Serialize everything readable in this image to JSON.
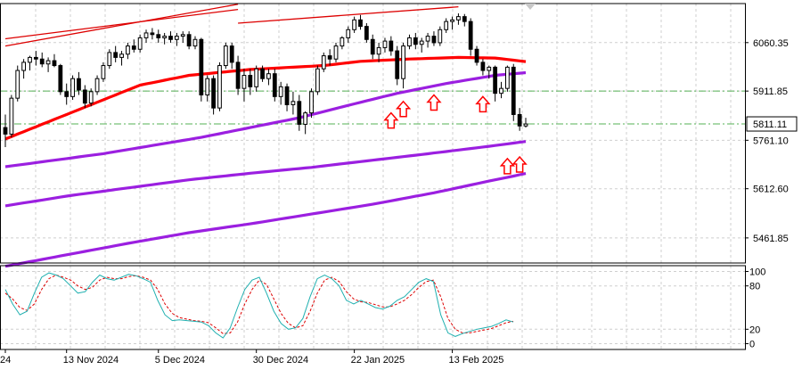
{
  "chart_data": {
    "type": "candlestick",
    "price_panel": {
      "y_ticks": [
        "6060.35",
        "5911.85",
        "5761.10",
        "5612.60",
        "5461.85"
      ],
      "y_tick_values": [
        6060.35,
        5911.85,
        5761.1,
        5612.6,
        5461.85
      ],
      "current_price_label": "5811.11",
      "current_price": 5811.11,
      "y_range": [
        5385,
        6180
      ],
      "horizontal_levels": [
        5911.85,
        5811.11
      ],
      "candles": [
        [
          5800,
          5840,
          5740,
          5780
        ],
        [
          5780,
          5900,
          5770,
          5890
        ],
        [
          5890,
          5990,
          5880,
          5975
        ],
        [
          5975,
          6010,
          5950,
          6000
        ],
        [
          6000,
          6020,
          5975,
          6015
        ],
        [
          6015,
          6035,
          5990,
          6010
        ],
        [
          6010,
          6030,
          5985,
          5995
        ],
        [
          5995,
          6015,
          5970,
          6005
        ],
        [
          6005,
          6025,
          5985,
          5990
        ],
        [
          5990,
          5995,
          5900,
          5910
        ],
        [
          5910,
          5935,
          5870,
          5895
        ],
        [
          5895,
          5960,
          5885,
          5950
        ],
        [
          5950,
          5970,
          5900,
          5915
        ],
        [
          5915,
          5930,
          5860,
          5875
        ],
        [
          5875,
          5920,
          5865,
          5910
        ],
        [
          5910,
          5960,
          5900,
          5950
        ],
        [
          5950,
          6000,
          5940,
          5990
        ],
        [
          5990,
          6040,
          5980,
          6030
        ],
        [
          6030,
          6050,
          6000,
          6015
        ],
        [
          6015,
          6035,
          5990,
          6025
        ],
        [
          6025,
          6060,
          6010,
          6050
        ],
        [
          6050,
          6070,
          6030,
          6040
        ],
        [
          6040,
          6085,
          6030,
          6075
        ],
        [
          6075,
          6100,
          6060,
          6090
        ],
        [
          6090,
          6105,
          6070,
          6085
        ],
        [
          6085,
          6100,
          6060,
          6075
        ],
        [
          6075,
          6090,
          6055,
          6080
        ],
        [
          6080,
          6095,
          6060,
          6070
        ],
        [
          6070,
          6090,
          6050,
          6080
        ],
        [
          6080,
          6095,
          6060,
          6085
        ],
        [
          6085,
          6095,
          6040,
          6050
        ],
        [
          6050,
          6080,
          6040,
          6070
        ],
        [
          6070,
          6075,
          5880,
          5900
        ],
        [
          5900,
          5960,
          5880,
          5950
        ],
        [
          5950,
          5960,
          5840,
          5860
        ],
        [
          5860,
          6000,
          5850,
          5990
        ],
        [
          5990,
          6060,
          5980,
          6050
        ],
        [
          6050,
          6060,
          5980,
          6000
        ],
        [
          6000,
          6020,
          5900,
          5920
        ],
        [
          5920,
          5980,
          5880,
          5960
        ],
        [
          5960,
          5980,
          5900,
          5925
        ],
        [
          5925,
          5990,
          5910,
          5980
        ],
        [
          5980,
          5990,
          5940,
          5950
        ],
        [
          5950,
          5980,
          5930,
          5965
        ],
        [
          5965,
          5980,
          5880,
          5895
        ],
        [
          5895,
          5940,
          5870,
          5925
        ],
        [
          5925,
          5935,
          5850,
          5870
        ],
        [
          5870,
          5910,
          5840,
          5880
        ],
        [
          5880,
          5900,
          5790,
          5810
        ],
        [
          5810,
          5850,
          5780,
          5845
        ],
        [
          5845,
          5920,
          5830,
          5910
        ],
        [
          5910,
          5990,
          5900,
          5980
        ],
        [
          5980,
          6030,
          5970,
          6020
        ],
        [
          6020,
          6040,
          5990,
          6010
        ],
        [
          6010,
          6060,
          6000,
          6050
        ],
        [
          6050,
          6080,
          6040,
          6075
        ],
        [
          6075,
          6110,
          6060,
          6100
        ],
        [
          6100,
          6140,
          6090,
          6130
        ],
        [
          6130,
          6145,
          6100,
          6110
        ],
        [
          6110,
          6120,
          6060,
          6070
        ],
        [
          6070,
          6085,
          6010,
          6025
        ],
        [
          6025,
          6060,
          6000,
          6045
        ],
        [
          6045,
          6075,
          6030,
          6065
        ],
        [
          6065,
          6080,
          6020,
          6035
        ],
        [
          6035,
          6050,
          5930,
          5950
        ],
        [
          5950,
          6060,
          5920,
          6050
        ],
        [
          6050,
          6085,
          6040,
          6075
        ],
        [
          6075,
          6090,
          6040,
          6055
        ],
        [
          6055,
          6075,
          6030,
          6065
        ],
        [
          6065,
          6090,
          6045,
          6080
        ],
        [
          6080,
          6095,
          6050,
          6060
        ],
        [
          6060,
          6110,
          6050,
          6100
        ],
        [
          6100,
          6135,
          6090,
          6125
        ],
        [
          6125,
          6140,
          6100,
          6130
        ],
        [
          6130,
          6150,
          6115,
          6140
        ],
        [
          6140,
          6148,
          6110,
          6125
        ],
        [
          6125,
          6135,
          6020,
          6040
        ],
        [
          6040,
          6050,
          5990,
          6000
        ],
        [
          6000,
          6010,
          5960,
          5975
        ],
        [
          5975,
          5990,
          5950,
          5985
        ],
        [
          5985,
          5990,
          5880,
          5905
        ],
        [
          5905,
          5940,
          5890,
          5920
        ],
        [
          5920,
          5990,
          5910,
          5985
        ],
        [
          5985,
          5995,
          5820,
          5840
        ],
        [
          5840,
          5860,
          5790,
          5805
        ],
        [
          5805,
          5830,
          5800,
          5811
        ]
      ],
      "moving_averages": [
        {
          "color": "#ff0000",
          "values": [
            [
              0,
              5765
            ],
            [
              6,
              5810
            ],
            [
              14,
              5870
            ],
            [
              22,
              5930
            ],
            [
              30,
              5960
            ],
            [
              40,
              5978
            ],
            [
              52,
              5990
            ],
            [
              58,
              6003
            ],
            [
              66,
              6010
            ],
            [
              74,
              6015
            ],
            [
              80,
              6013
            ],
            [
              86,
              6000
            ]
          ]
        },
        {
          "color": "#9b1fe0",
          "values": [
            [
              0,
              5680
            ],
            [
              8,
              5700
            ],
            [
              16,
              5720
            ],
            [
              24,
              5745
            ],
            [
              32,
              5770
            ],
            [
              40,
              5800
            ],
            [
              48,
              5830
            ],
            [
              56,
              5868
            ],
            [
              64,
              5905
            ],
            [
              72,
              5935
            ],
            [
              80,
              5960
            ],
            [
              86,
              5970
            ]
          ]
        },
        {
          "color": "#9b1fe0",
          "values": [
            [
              0,
              5560
            ],
            [
              10,
              5590
            ],
            [
              20,
              5615
            ],
            [
              30,
              5640
            ],
            [
              40,
              5660
            ],
            [
              50,
              5678
            ],
            [
              60,
              5700
            ],
            [
              70,
              5722
            ],
            [
              80,
              5745
            ],
            [
              86,
              5760
            ]
          ]
        },
        {
          "color": "#9b1fe0",
          "values": [
            [
              0,
              5375
            ],
            [
              10,
              5410
            ],
            [
              20,
              5445
            ],
            [
              30,
              5478
            ],
            [
              40,
              5505
            ],
            [
              50,
              5535
            ],
            [
              60,
              5565
            ],
            [
              70,
              5600
            ],
            [
              80,
              5640
            ],
            [
              86,
              5663
            ]
          ]
        }
      ],
      "trend_lines": [
        {
          "color": "#dd0000",
          "from": [
            0,
            6050
          ],
          "to": [
            38,
            6178
          ]
        },
        {
          "color": "#dd0000",
          "from": [
            0,
            6072
          ],
          "to": [
            38,
            6162
          ]
        },
        {
          "color": "#dd0000",
          "from": [
            38,
            6120
          ],
          "to": [
            74,
            6170
          ]
        }
      ],
      "arrow_markers": [
        {
          "index": 63,
          "value": 5845
        },
        {
          "index": 65,
          "value": 5880
        },
        {
          "index": 70,
          "value": 5900
        },
        {
          "index": 78,
          "value": 5895
        },
        {
          "index": 82,
          "value": 5705
        },
        {
          "index": 84,
          "value": 5710
        }
      ]
    },
    "stochastic_panel": {
      "y_ticks": [
        "100",
        "80",
        "20",
        "0"
      ],
      "y_tick_values": [
        100,
        80,
        20,
        0
      ],
      "y_range": [
        -8,
        108
      ],
      "main_color": "#20b0b0",
      "signal_color": "#dd0000",
      "main": [
        75,
        55,
        40,
        45,
        70,
        92,
        98,
        95,
        90,
        80,
        70,
        72,
        85,
        95,
        90,
        88,
        92,
        96,
        94,
        90,
        85,
        60,
        40,
        32,
        33,
        32,
        31,
        30,
        25,
        15,
        8,
        22,
        50,
        75,
        88,
        92,
        70,
        45,
        28,
        20,
        22,
        35,
        65,
        90,
        95,
        90,
        80,
        60,
        55,
        60,
        55,
        50,
        48,
        52,
        60,
        65,
        75,
        85,
        90,
        86,
        40,
        15,
        10,
        14,
        17,
        20,
        22,
        24,
        28,
        33,
        30
      ],
      "signal": [
        70,
        62,
        50,
        46,
        55,
        75,
        90,
        95,
        92,
        88,
        80,
        75,
        78,
        88,
        92,
        90,
        90,
        93,
        94,
        92,
        88,
        75,
        55,
        42,
        36,
        34,
        32,
        31,
        29,
        22,
        14,
        15,
        30,
        55,
        75,
        88,
        82,
        62,
        42,
        28,
        22,
        25,
        45,
        70,
        88,
        92,
        86,
        72,
        62,
        58,
        57,
        54,
        51,
        51,
        55,
        60,
        68,
        78,
        86,
        88,
        65,
        35,
        20,
        15,
        15,
        17,
        19,
        21,
        25,
        29,
        31
      ]
    },
    "x_labels": [
      {
        "text": "24",
        "index": 0
      },
      {
        "text": "13 Nov 2024",
        "index": 10
      },
      {
        "text": "5 Dec 2024",
        "index": 25
      },
      {
        "text": "30 Dec 2024",
        "index": 41
      },
      {
        "text": "22 Jan 2025",
        "index": 57
      },
      {
        "text": "13 Feb 2025",
        "index": 73
      }
    ],
    "colors": {
      "background": "#ffffff",
      "grid": "#cfcfcf",
      "candle": "#000000",
      "level_line": "#55b055",
      "arrow": "#ff0000"
    }
  }
}
